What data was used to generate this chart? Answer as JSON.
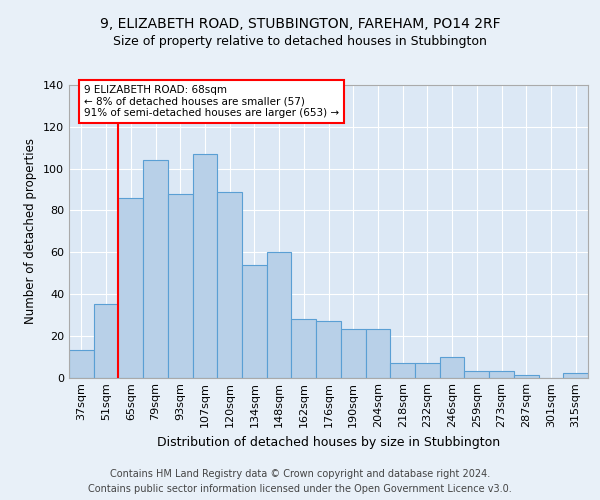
{
  "title_line1": "9, ELIZABETH ROAD, STUBBINGTON, FAREHAM, PO14 2RF",
  "title_line2": "Size of property relative to detached houses in Stubbington",
  "xlabel": "Distribution of detached houses by size in Stubbington",
  "ylabel": "Number of detached properties",
  "categories": [
    "37sqm",
    "51sqm",
    "65sqm",
    "79sqm",
    "93sqm",
    "107sqm",
    "120sqm",
    "134sqm",
    "148sqm",
    "162sqm",
    "176sqm",
    "190sqm",
    "204sqm",
    "218sqm",
    "232sqm",
    "246sqm",
    "259sqm",
    "273sqm",
    "287sqm",
    "301sqm",
    "315sqm"
  ],
  "values": [
    13,
    35,
    86,
    104,
    88,
    107,
    89,
    54,
    60,
    28,
    27,
    23,
    23,
    7,
    7,
    10,
    3,
    3,
    1,
    0,
    2
  ],
  "bar_color": "#b8d0e8",
  "bar_edge_color": "#5a9fd4",
  "property_line_x": 1.5,
  "annotation_line1": "9 ELIZABETH ROAD: 68sqm",
  "annotation_line2": "← 8% of detached houses are smaller (57)",
  "annotation_line3": "91% of semi-detached houses are larger (653) →",
  "annotation_box_color": "white",
  "annotation_box_edge": "red",
  "property_line_color": "red",
  "footnote1": "Contains HM Land Registry data © Crown copyright and database right 2024.",
  "footnote2": "Contains public sector information licensed under the Open Government Licence v3.0.",
  "ylim": [
    0,
    140
  ],
  "yticks": [
    0,
    20,
    40,
    60,
    80,
    100,
    120,
    140
  ],
  "background_color": "#e8f0f8",
  "plot_background": "#dce8f5",
  "grid_color": "white",
  "title_fontsize": 10,
  "subtitle_fontsize": 9,
  "footnote_fontsize": 7
}
